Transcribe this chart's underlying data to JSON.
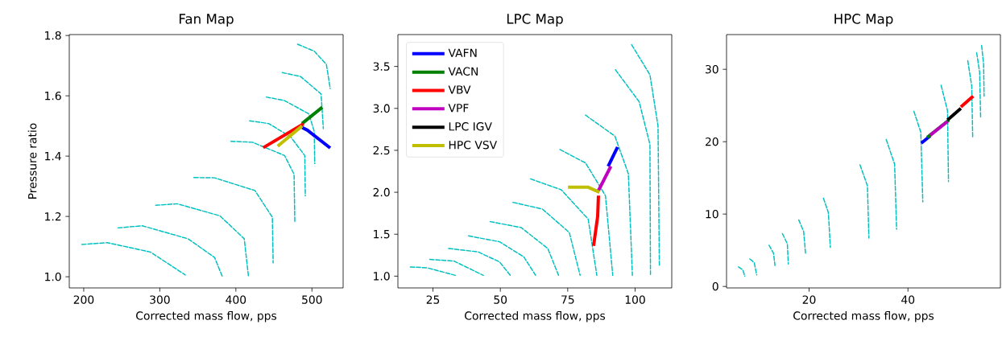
{
  "chart_data": [
    {
      "type": "line",
      "title": "Fan Map",
      "xlabel": "Corrected mass flow, pps",
      "ylabel": "Pressure ratio",
      "xlim": [
        181,
        541
      ],
      "ylim": [
        0.963,
        1.803
      ],
      "xticks": [
        200,
        300,
        400,
        500
      ],
      "yticks": [
        {
          "value": 1.0,
          "label": "1.0"
        },
        {
          "value": 1.2,
          "label": "1.2"
        },
        {
          "value": 1.4,
          "label": "1.4"
        },
        {
          "value": 1.6,
          "label": "1.6"
        },
        {
          "value": 1.8,
          "label": "1.8"
        }
      ],
      "series": [
        {
          "color": "#00bfbf",
          "line_style": "dashed",
          "x": [
            197.5,
            231,
            287.6,
            333.5
          ],
          "values": [
            1.107,
            1.113,
            1.082,
            1.006
          ]
        },
        {
          "color": "#00bfbf",
          "line_style": "dashed",
          "x": [
            245,
            277,
            337,
            372,
            382
          ],
          "values": [
            1.162,
            1.169,
            1.126,
            1.064,
            1.002
          ]
        },
        {
          "color": "#00bfbf",
          "line_style": "dashed",
          "x": [
            294.6,
            323,
            379,
            411,
            416.5
          ],
          "values": [
            1.237,
            1.242,
            1.202,
            1.126,
            1.002
          ]
        },
        {
          "color": "#00bfbf",
          "line_style": "dashed",
          "x": [
            344.8,
            372,
            425,
            448,
            449
          ],
          "values": [
            1.329,
            1.328,
            1.286,
            1.197,
            1.046
          ]
        },
        {
          "color": "#00bfbf",
          "line_style": "dashed",
          "x": [
            393.5,
            421.7,
            464,
            476.5,
            477.5
          ],
          "values": [
            1.449,
            1.446,
            1.402,
            1.34,
            1.18
          ]
        },
        {
          "color": "#00bfbf",
          "line_style": "dashed",
          "x": [
            418,
            443,
            472,
            490.6,
            491.3
          ],
          "values": [
            1.517,
            1.508,
            1.464,
            1.402,
            1.268
          ]
        },
        {
          "color": "#00bfbf",
          "line_style": "dashed",
          "x": [
            440,
            464,
            496,
            503,
            503.7
          ],
          "values": [
            1.596,
            1.584,
            1.54,
            1.482,
            1.375
          ]
        },
        {
          "color": "#00bfbf",
          "line_style": "dashed",
          "x": [
            461,
            485,
            512,
            515
          ],
          "values": [
            1.677,
            1.664,
            1.606,
            1.491
          ]
        },
        {
          "color": "#00bfbf",
          "line_style": "dashed",
          "x": [
            481,
            503,
            519,
            524
          ],
          "values": [
            1.771,
            1.748,
            1.704,
            1.624
          ]
        },
        {
          "color": "#0000ff",
          "line_style": "solid",
          "x": [
            487,
            494,
            524
          ],
          "values": [
            1.495,
            1.486,
            1.427
          ]
        },
        {
          "color": "#008000",
          "line_style": "solid",
          "x": [
            487,
            513.6
          ],
          "values": [
            1.508,
            1.562
          ]
        },
        {
          "color": "#ff0000",
          "line_style": "solid",
          "x": [
            436,
            489
          ],
          "values": [
            1.428,
            1.507
          ]
        },
        {
          "color": "#bfbf00",
          "line_style": "solid",
          "x": [
            455,
            487
          ],
          "values": [
            1.433,
            1.5
          ]
        }
      ]
    },
    {
      "type": "line",
      "title": "LPC Map",
      "xlabel": "Corrected mass flow, pps",
      "legend": "top left",
      "xlim": [
        12.0,
        113.6
      ],
      "ylim": [
        0.86,
        3.88
      ],
      "xticks": [
        25,
        50,
        75,
        100
      ],
      "yticks": [
        {
          "value": 1.0,
          "label": "1.0"
        },
        {
          "value": 1.5,
          "label": "1.5"
        },
        {
          "value": 2.0,
          "label": "2.0"
        },
        {
          "value": 2.5,
          "label": "2.5"
        },
        {
          "value": 3.0,
          "label": "3.0"
        },
        {
          "value": 3.5,
          "label": "3.5"
        }
      ],
      "series": [
        {
          "color": "#00bfbf",
          "line_style": "dashed",
          "x": [
            16.6,
            22.8,
            33.3
          ],
          "values": [
            1.11,
            1.1,
            1.01
          ]
        },
        {
          "color": "#00bfbf",
          "line_style": "dashed",
          "x": [
            23.8,
            32.8,
            43.7
          ],
          "values": [
            1.2,
            1.18,
            1.01
          ]
        },
        {
          "color": "#00bfbf",
          "line_style": "dashed",
          "x": [
            30.8,
            41.7,
            49.7,
            53.7
          ],
          "values": [
            1.33,
            1.29,
            1.17,
            1.01
          ]
        },
        {
          "color": "#00bfbf",
          "line_style": "dashed",
          "x": [
            38.2,
            49.7,
            58.7,
            63.1
          ],
          "values": [
            1.48,
            1.41,
            1.23,
            1.01
          ]
        },
        {
          "color": "#00bfbf",
          "line_style": "dashed",
          "x": [
            46.2,
            57.7,
            67.6,
            71.6
          ],
          "values": [
            1.65,
            1.58,
            1.33,
            1.01
          ]
        },
        {
          "color": "#00bfbf",
          "line_style": "dashed",
          "x": [
            54.7,
            65.6,
            75.6,
            79.6
          ],
          "values": [
            1.88,
            1.8,
            1.52,
            1.01
          ]
        },
        {
          "color": "#00bfbf",
          "line_style": "dashed",
          "x": [
            61.2,
            72.6,
            82.6,
            85.8
          ],
          "values": [
            2.16,
            2.03,
            1.68,
            1.01
          ]
        },
        {
          "color": "#00bfbf",
          "line_style": "dashed",
          "x": [
            72.1,
            81.6,
            89.0,
            91.7
          ],
          "values": [
            2.51,
            2.35,
            1.96,
            1.01
          ]
        },
        {
          "color": "#00bfbf",
          "line_style": "dashed",
          "x": [
            81.6,
            92.5,
            97.5,
            99.0
          ],
          "values": [
            2.92,
            2.67,
            2.22,
            1.01
          ]
        },
        {
          "color": "#00bfbf",
          "line_style": "dashed",
          "x": [
            92.7,
            101.5,
            105.5,
            105.7
          ],
          "values": [
            3.46,
            3.08,
            2.57,
            1.02
          ]
        },
        {
          "color": "#00bfbf",
          "line_style": "dashed",
          "x": [
            98.7,
            105.5,
            108.5,
            109.0
          ],
          "values": [
            3.76,
            3.4,
            2.79,
            1.13
          ]
        },
        {
          "name": "VAFN",
          "color": "#0000ff",
          "line_style": "solid",
          "x": [
            90.0,
            93.5
          ],
          "values": [
            2.31,
            2.54
          ]
        },
        {
          "name": "VACN",
          "color": "#008000",
          "line_style": "solid"
        },
        {
          "name": "VBV",
          "color": "#ff0000",
          "line_style": "solid",
          "x": [
            84.6,
            86.1,
            86.4
          ],
          "values": [
            1.36,
            1.71,
            1.96
          ]
        },
        {
          "name": "VPF",
          "color": "#bf00bf",
          "line_style": "solid",
          "x": [
            86.4,
            91.0
          ],
          "values": [
            2.02,
            2.31
          ]
        },
        {
          "name": "LPC IGV",
          "color": "#000000",
          "line_style": "solid"
        },
        {
          "name": "HPC VSV",
          "color": "#bfbf00",
          "line_style": "solid",
          "x": [
            75.1,
            82.6,
            86.8
          ],
          "values": [
            2.06,
            2.06,
            2.0
          ]
        }
      ]
    },
    {
      "type": "line",
      "title": "HPC Map",
      "xlabel": "Corrected mass flow, pps",
      "xlim": [
        3.3,
        58.7
      ],
      "ylim": [
        -0.2,
        34.8
      ],
      "xticks": [
        20,
        40
      ],
      "yticks": [
        0,
        10,
        20,
        30
      ],
      "series": [
        {
          "color": "#00bfbf",
          "line_style": "dashed",
          "x": [
            5.7,
            6.6,
            7.0
          ],
          "values": [
            2.7,
            2.3,
            1.4
          ]
        },
        {
          "color": "#00bfbf",
          "line_style": "dashed",
          "x": [
            8.0,
            8.9,
            9.4
          ],
          "values": [
            3.8,
            3.3,
            1.6
          ]
        },
        {
          "color": "#00bfbf",
          "line_style": "dashed",
          "x": [
            11.9,
            12.8,
            13.1
          ],
          "values": [
            5.7,
            4.6,
            2.9
          ]
        },
        {
          "color": "#00bfbf",
          "line_style": "dashed",
          "x": [
            14.6,
            15.6,
            15.8
          ],
          "values": [
            7.3,
            5.9,
            3.1
          ]
        },
        {
          "color": "#00bfbf",
          "line_style": "dashed",
          "x": [
            17.9,
            18.9,
            19.3
          ],
          "values": [
            9.2,
            7.6,
            4.4
          ]
        },
        {
          "color": "#00bfbf",
          "line_style": "dashed",
          "x": [
            22.9,
            23.9,
            24.3
          ],
          "values": [
            12.2,
            10.2,
            5.4
          ]
        },
        {
          "color": "#00bfbf",
          "line_style": "dashed",
          "x": [
            30.3,
            31.8,
            32.1
          ],
          "values": [
            16.8,
            13.9,
            6.7
          ]
        },
        {
          "color": "#00bfbf",
          "line_style": "dashed",
          "x": [
            35.6,
            37.3,
            37.7
          ],
          "values": [
            20.3,
            16.9,
            7.9
          ]
        },
        {
          "color": "#00bfbf",
          "line_style": "dashed",
          "x": [
            41.2,
            42.6,
            43.0
          ],
          "values": [
            24.2,
            21.3,
            11.7
          ]
        },
        {
          "color": "#00bfbf",
          "line_style": "dashed",
          "x": [
            46.7,
            48.0,
            48.2
          ],
          "values": [
            27.8,
            24.3,
            14.5
          ]
        },
        {
          "color": "#00bfbf",
          "line_style": "dashed",
          "x": [
            52.1,
            52.9,
            53.1
          ],
          "values": [
            31.2,
            27.7,
            20.5
          ]
        },
        {
          "color": "#00bfbf",
          "line_style": "dashed",
          "x": [
            53.9,
            54.5,
            54.7
          ],
          "values": [
            32.3,
            29.6,
            23.4
          ]
        },
        {
          "color": "#00bfbf",
          "line_style": "dashed",
          "x": [
            54.9,
            55.3,
            55.4
          ],
          "values": [
            33.3,
            30.7,
            26.3
          ]
        },
        {
          "color": "#0000ff",
          "line_style": "solid",
          "x": [
            42.7,
            44.5
          ],
          "values": [
            19.8,
            20.8
          ]
        },
        {
          "color": "#008000",
          "line_style": "solid",
          "x": [
            43.9,
            48.3
          ],
          "values": [
            20.6,
            23.0
          ]
        },
        {
          "color": "#ff0000",
          "line_style": "solid",
          "x": [
            50.7,
            53.2
          ],
          "values": [
            24.8,
            26.3
          ]
        },
        {
          "color": "#bf00bf",
          "line_style": "solid",
          "x": [
            44.5,
            48.0
          ],
          "values": [
            20.9,
            22.8
          ]
        },
        {
          "color": "#000000",
          "line_style": "solid",
          "x": [
            48.0,
            50.7
          ],
          "values": [
            23.0,
            24.6
          ]
        }
      ]
    }
  ]
}
